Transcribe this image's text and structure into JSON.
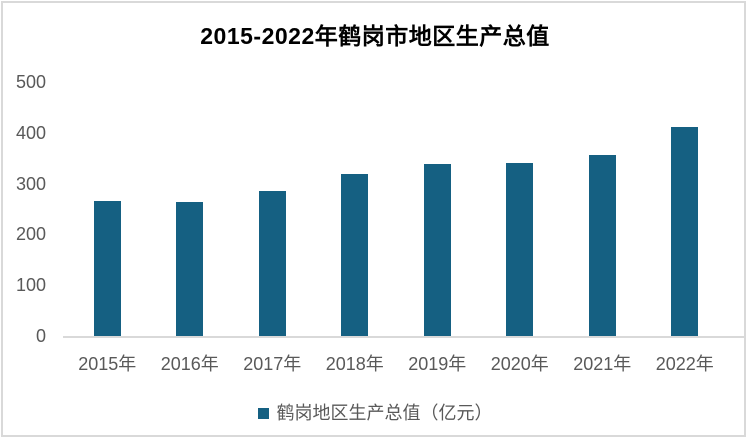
{
  "chart_data": {
    "type": "bar",
    "title": "2015-2022年鹤岗市地区生产总值",
    "categories": [
      "2015年",
      "2016年",
      "2017年",
      "2018年",
      "2019年",
      "2020年",
      "2021年",
      "2022年"
    ],
    "values": [
      266,
      264,
      285,
      318,
      338,
      341,
      356,
      411
    ],
    "legend": [
      "鹤岗地区生产总值（亿元）"
    ],
    "xlabel": "",
    "ylabel": "",
    "ylim": [
      0,
      500
    ],
    "yticks": [
      0,
      100,
      200,
      300,
      400,
      500
    ],
    "grid": false,
    "legend_position": "bottom",
    "bar_color": "#156082",
    "axis_label_color": "#595959",
    "axis_line_color": "#d9d9d9",
    "border_color": "#d9d9d9",
    "title_color": "#000000"
  }
}
